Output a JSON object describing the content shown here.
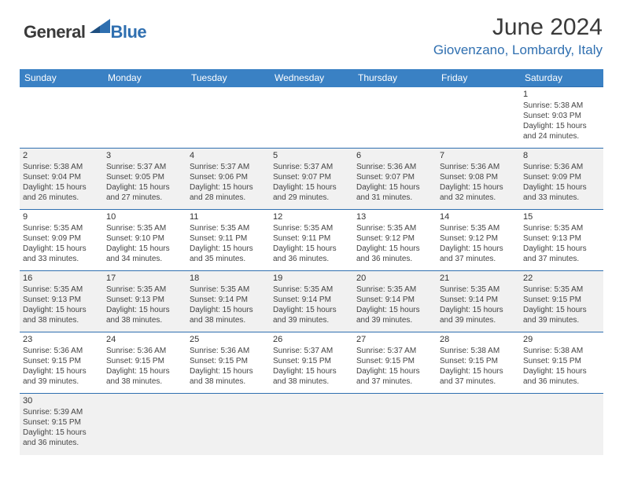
{
  "logo": {
    "text_dark": "General",
    "text_blue": "Blue"
  },
  "title": "June 2024",
  "location": "Giovenzano, Lombardy, Italy",
  "colors": {
    "header_bg": "#3a81c4",
    "header_text": "#ffffff",
    "accent": "#2f6fb0",
    "row_alt": "#f1f1f1",
    "text": "#444444"
  },
  "weekdays": [
    "Sunday",
    "Monday",
    "Tuesday",
    "Wednesday",
    "Thursday",
    "Friday",
    "Saturday"
  ],
  "weeks": [
    [
      null,
      null,
      null,
      null,
      null,
      null,
      {
        "d": "1",
        "sr": "5:38 AM",
        "ss": "9:03 PM",
        "dl": "15 hours and 24 minutes."
      }
    ],
    [
      {
        "d": "2",
        "sr": "5:38 AM",
        "ss": "9:04 PM",
        "dl": "15 hours and 26 minutes."
      },
      {
        "d": "3",
        "sr": "5:37 AM",
        "ss": "9:05 PM",
        "dl": "15 hours and 27 minutes."
      },
      {
        "d": "4",
        "sr": "5:37 AM",
        "ss": "9:06 PM",
        "dl": "15 hours and 28 minutes."
      },
      {
        "d": "5",
        "sr": "5:37 AM",
        "ss": "9:07 PM",
        "dl": "15 hours and 29 minutes."
      },
      {
        "d": "6",
        "sr": "5:36 AM",
        "ss": "9:07 PM",
        "dl": "15 hours and 31 minutes."
      },
      {
        "d": "7",
        "sr": "5:36 AM",
        "ss": "9:08 PM",
        "dl": "15 hours and 32 minutes."
      },
      {
        "d": "8",
        "sr": "5:36 AM",
        "ss": "9:09 PM",
        "dl": "15 hours and 33 minutes."
      }
    ],
    [
      {
        "d": "9",
        "sr": "5:35 AM",
        "ss": "9:09 PM",
        "dl": "15 hours and 33 minutes."
      },
      {
        "d": "10",
        "sr": "5:35 AM",
        "ss": "9:10 PM",
        "dl": "15 hours and 34 minutes."
      },
      {
        "d": "11",
        "sr": "5:35 AM",
        "ss": "9:11 PM",
        "dl": "15 hours and 35 minutes."
      },
      {
        "d": "12",
        "sr": "5:35 AM",
        "ss": "9:11 PM",
        "dl": "15 hours and 36 minutes."
      },
      {
        "d": "13",
        "sr": "5:35 AM",
        "ss": "9:12 PM",
        "dl": "15 hours and 36 minutes."
      },
      {
        "d": "14",
        "sr": "5:35 AM",
        "ss": "9:12 PM",
        "dl": "15 hours and 37 minutes."
      },
      {
        "d": "15",
        "sr": "5:35 AM",
        "ss": "9:13 PM",
        "dl": "15 hours and 37 minutes."
      }
    ],
    [
      {
        "d": "16",
        "sr": "5:35 AM",
        "ss": "9:13 PM",
        "dl": "15 hours and 38 minutes."
      },
      {
        "d": "17",
        "sr": "5:35 AM",
        "ss": "9:13 PM",
        "dl": "15 hours and 38 minutes."
      },
      {
        "d": "18",
        "sr": "5:35 AM",
        "ss": "9:14 PM",
        "dl": "15 hours and 38 minutes."
      },
      {
        "d": "19",
        "sr": "5:35 AM",
        "ss": "9:14 PM",
        "dl": "15 hours and 39 minutes."
      },
      {
        "d": "20",
        "sr": "5:35 AM",
        "ss": "9:14 PM",
        "dl": "15 hours and 39 minutes."
      },
      {
        "d": "21",
        "sr": "5:35 AM",
        "ss": "9:14 PM",
        "dl": "15 hours and 39 minutes."
      },
      {
        "d": "22",
        "sr": "5:35 AM",
        "ss": "9:15 PM",
        "dl": "15 hours and 39 minutes."
      }
    ],
    [
      {
        "d": "23",
        "sr": "5:36 AM",
        "ss": "9:15 PM",
        "dl": "15 hours and 39 minutes."
      },
      {
        "d": "24",
        "sr": "5:36 AM",
        "ss": "9:15 PM",
        "dl": "15 hours and 38 minutes."
      },
      {
        "d": "25",
        "sr": "5:36 AM",
        "ss": "9:15 PM",
        "dl": "15 hours and 38 minutes."
      },
      {
        "d": "26",
        "sr": "5:37 AM",
        "ss": "9:15 PM",
        "dl": "15 hours and 38 minutes."
      },
      {
        "d": "27",
        "sr": "5:37 AM",
        "ss": "9:15 PM",
        "dl": "15 hours and 37 minutes."
      },
      {
        "d": "28",
        "sr": "5:38 AM",
        "ss": "9:15 PM",
        "dl": "15 hours and 37 minutes."
      },
      {
        "d": "29",
        "sr": "5:38 AM",
        "ss": "9:15 PM",
        "dl": "15 hours and 36 minutes."
      }
    ],
    [
      {
        "d": "30",
        "sr": "5:39 AM",
        "ss": "9:15 PM",
        "dl": "15 hours and 36 minutes."
      },
      null,
      null,
      null,
      null,
      null,
      null
    ]
  ],
  "labels": {
    "sunrise": "Sunrise:",
    "sunset": "Sunset:",
    "daylight": "Daylight:"
  }
}
